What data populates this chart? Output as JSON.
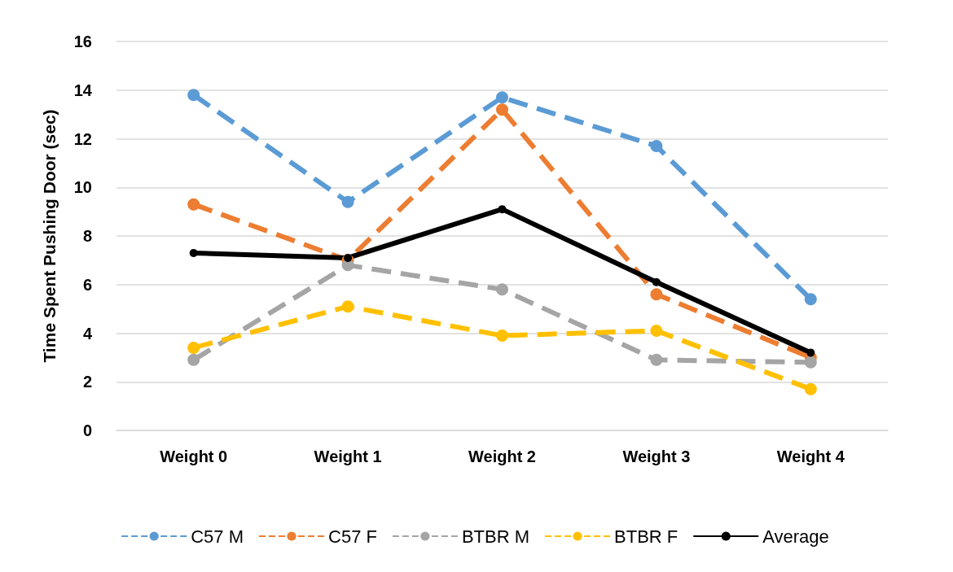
{
  "chart_data": {
    "type": "line",
    "ylabel": "Time Spent Pushing Door (sec)",
    "categories": [
      "Weight 0",
      "Weight 1",
      "Weight 2",
      "Weight 3",
      "Weight 4"
    ],
    "series": [
      {
        "name": "C57 M",
        "color": "#5b9bd5",
        "line_style": "dashed",
        "values": [
          13.8,
          9.4,
          13.7,
          11.7,
          5.4
        ]
      },
      {
        "name": "C57 F",
        "color": "#ed7d31",
        "line_style": "dashed",
        "values": [
          9.3,
          7.0,
          13.2,
          5.6,
          3.0
        ]
      },
      {
        "name": "BTBR M",
        "color": "#a5a5a5",
        "line_style": "dashed",
        "values": [
          2.9,
          6.8,
          5.8,
          2.9,
          2.8
        ]
      },
      {
        "name": "BTBR F",
        "color": "#ffc000",
        "line_style": "dashed",
        "values": [
          3.4,
          5.1,
          3.9,
          4.1,
          1.7
        ]
      },
      {
        "name": "Average",
        "color": "#000000",
        "line_style": "solid",
        "values": [
          7.3,
          7.1,
          9.1,
          6.1,
          3.2
        ]
      }
    ],
    "ylim": [
      0,
      16
    ],
    "yticks": [
      0,
      2,
      4,
      6,
      8,
      10,
      12,
      14,
      16
    ],
    "grid": "y",
    "legend": "bottom",
    "marker": "circle"
  }
}
